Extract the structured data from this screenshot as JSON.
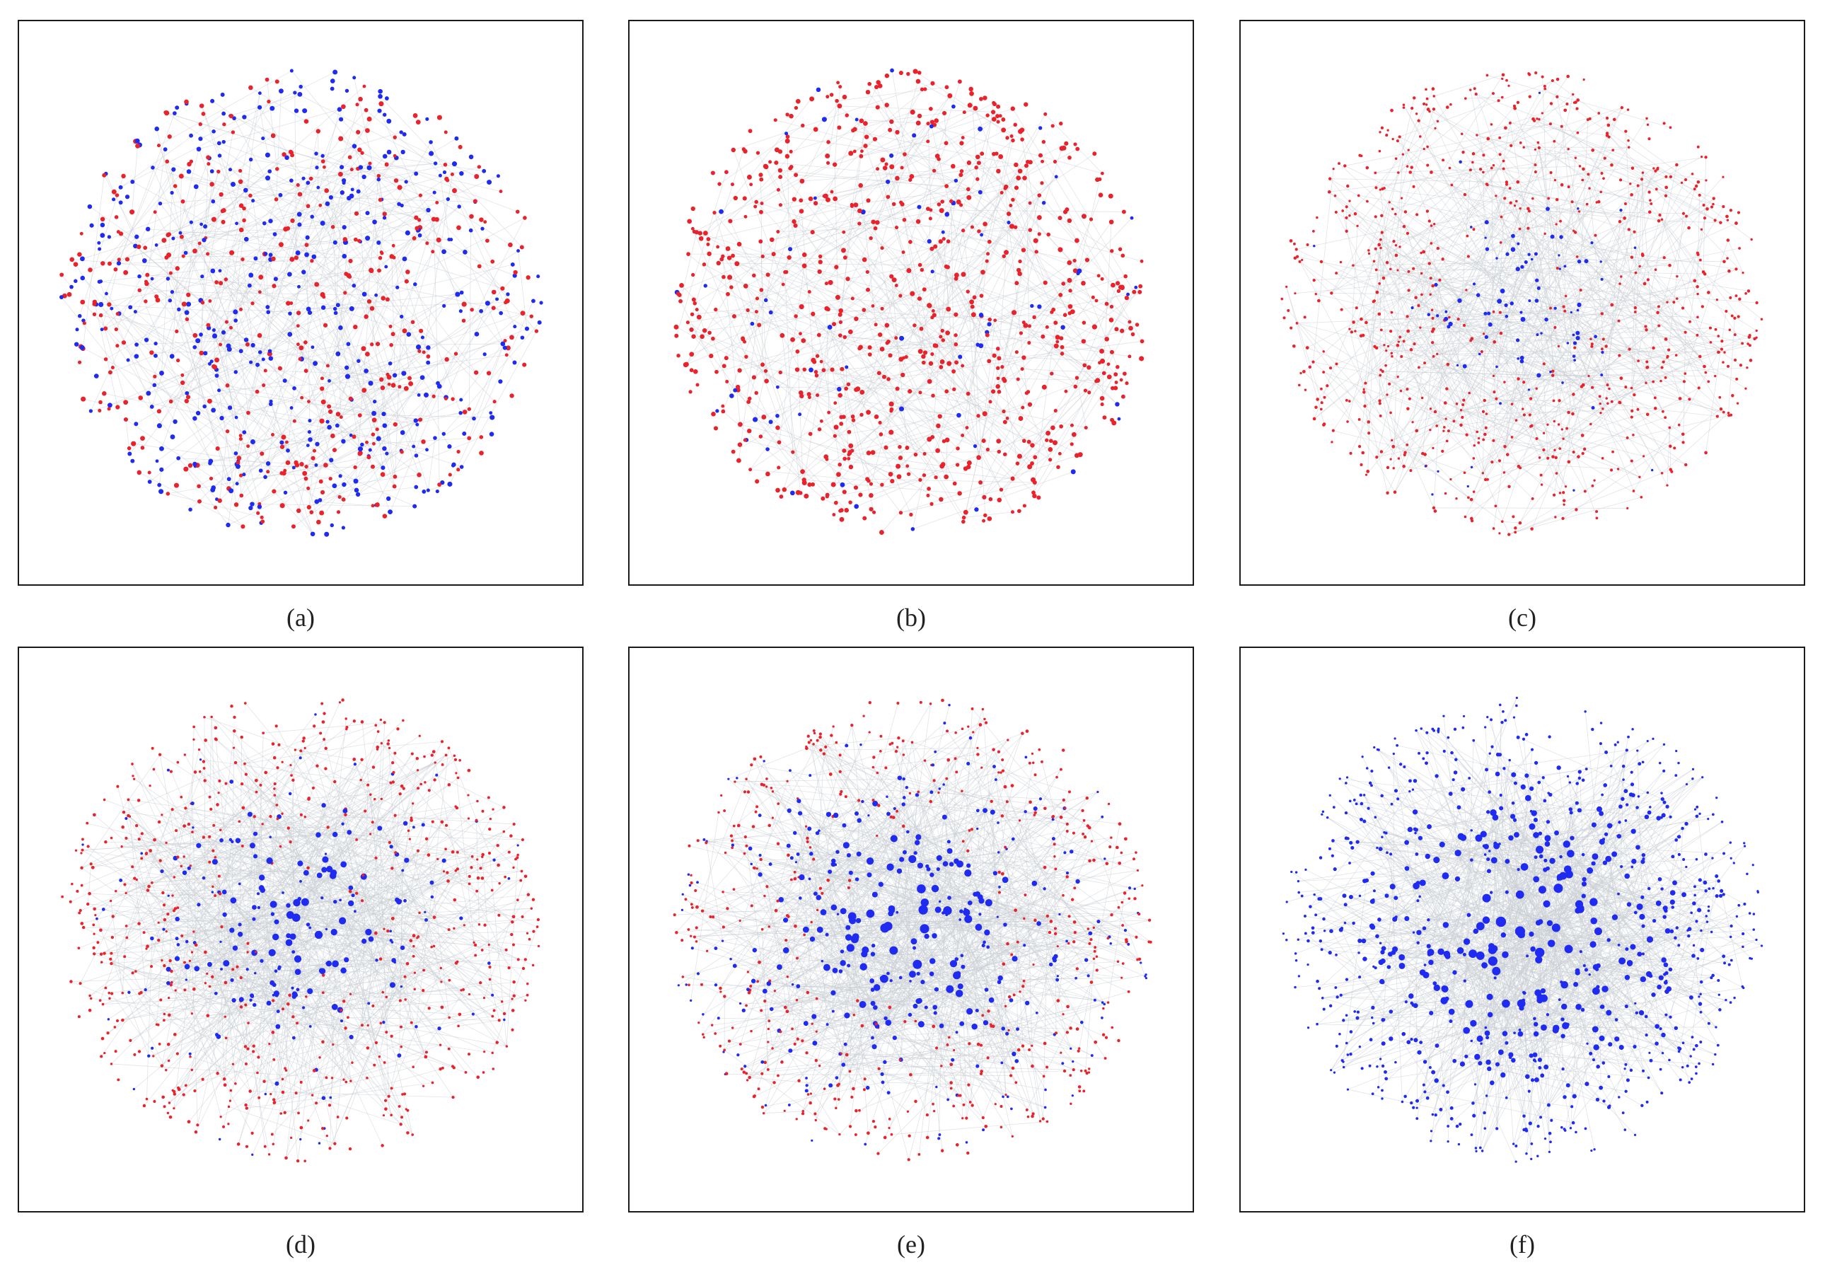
{
  "colors": {
    "state_a": "#e8232b",
    "state_b": "#1f2bf0",
    "edge": "#c9ced4"
  },
  "panels": [
    {
      "id": "a",
      "caption": "(a)",
      "fraction_blue": 0.5,
      "hub_strength": 0.0
    },
    {
      "id": "b",
      "caption": "(b)",
      "fraction_blue": 0.08,
      "hub_strength": 0.0
    },
    {
      "id": "c",
      "caption": "(c)",
      "fraction_blue": 0.06,
      "hub_strength": 0.35
    },
    {
      "id": "d",
      "caption": "(d)",
      "fraction_blue": 0.28,
      "hub_strength": 0.7
    },
    {
      "id": "e",
      "caption": "(e)",
      "fraction_blue": 0.62,
      "hub_strength": 0.9
    },
    {
      "id": "f",
      "caption": "(f)",
      "fraction_blue": 1.0,
      "hub_strength": 1.0
    }
  ]
}
